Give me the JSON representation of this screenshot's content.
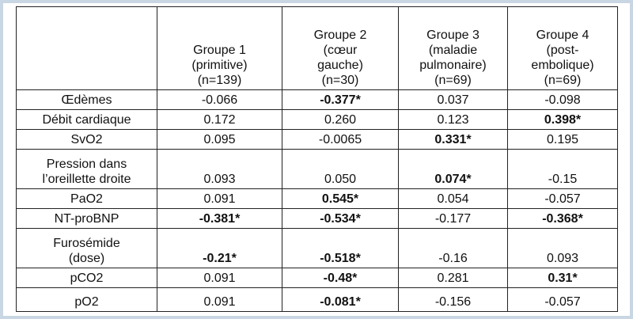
{
  "table": {
    "header": [
      [
        "Groupe 1",
        "(primitive)",
        "(n=139)"
      ],
      [
        "Groupe 2",
        "(cœur",
        "gauche)",
        "(n=30)"
      ],
      [
        "Groupe 3",
        "(maladie",
        "pulmonaire)",
        "(n=69)"
      ],
      [
        "Groupe 4",
        "(post-",
        "embolique)",
        "(n=69)"
      ]
    ],
    "rows": [
      {
        "label": [
          "Œdèmes"
        ],
        "values": [
          "-0.066",
          "-0.377*",
          "0.037",
          "-0.098"
        ],
        "bold": [
          false,
          true,
          false,
          false
        ]
      },
      {
        "label": [
          "Débit cardiaque"
        ],
        "values": [
          "0.172",
          "0.260",
          "0.123",
          "0.398*"
        ],
        "bold": [
          false,
          false,
          false,
          true
        ]
      },
      {
        "label": [
          "SvO2"
        ],
        "values": [
          "0.095",
          "-0.0065",
          "0.331*",
          "0.195"
        ],
        "bold": [
          false,
          false,
          true,
          false
        ]
      },
      {
        "label": [
          "Pression dans",
          "l’oreillette droite"
        ],
        "values": [
          "0.093",
          "0.050",
          "0.074*",
          "-0.15"
        ],
        "bold": [
          false,
          false,
          true,
          false
        ]
      },
      {
        "label": [
          "PaO2"
        ],
        "values": [
          "0.091",
          "0.545*",
          "0.054",
          "-0.057"
        ],
        "bold": [
          false,
          true,
          false,
          false
        ]
      },
      {
        "label": [
          "NT-proBNP"
        ],
        "values": [
          "-0.381*",
          "-0.534*",
          "-0.177",
          "-0.368*"
        ],
        "bold": [
          true,
          true,
          false,
          true
        ]
      },
      {
        "label": [
          "Furosémide",
          "(dose)"
        ],
        "values": [
          "-0.21*",
          "-0.518*",
          "-0.16",
          "0.093"
        ],
        "bold": [
          true,
          true,
          false,
          false
        ]
      },
      {
        "label": [
          "pCO2"
        ],
        "values": [
          "0.091",
          "-0.48*",
          "0.281",
          "0.31*"
        ],
        "bold": [
          false,
          true,
          false,
          true
        ]
      },
      {
        "label": [
          "pO2"
        ],
        "values": [
          "0.091",
          "-0.081*",
          "-0.156",
          "-0.057"
        ],
        "bold": [
          false,
          true,
          false,
          false
        ]
      }
    ]
  }
}
